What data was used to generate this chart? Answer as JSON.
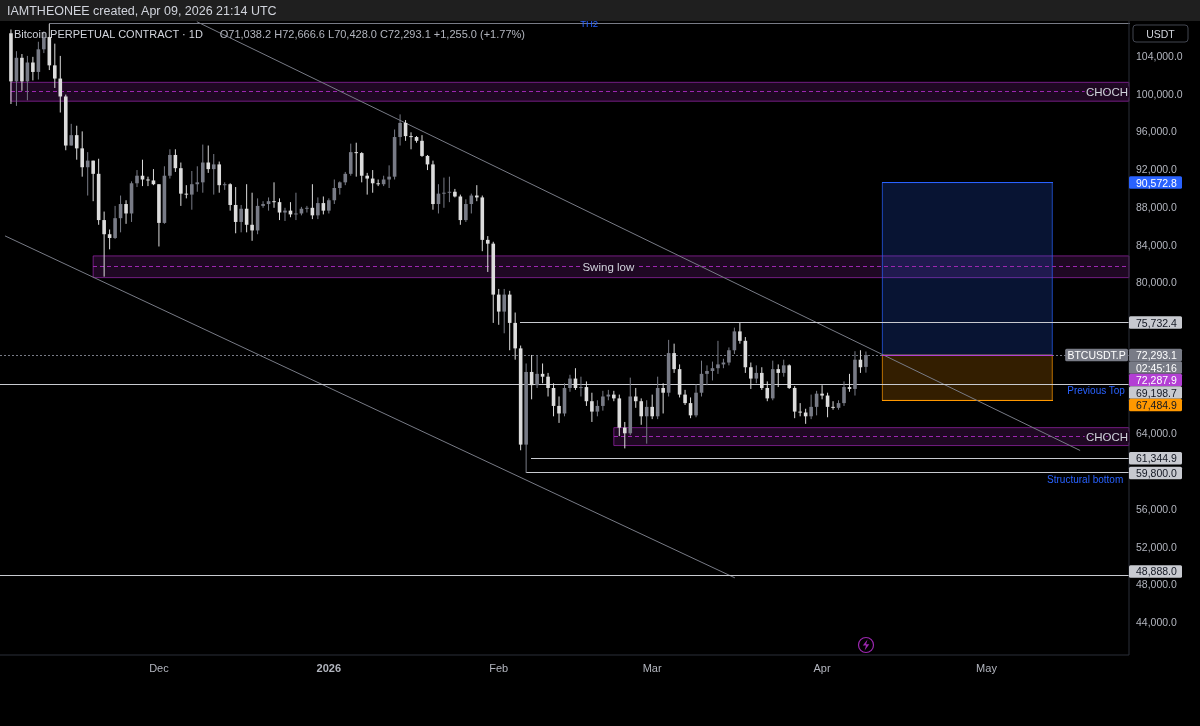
{
  "chart_data": {
    "type": "candlestick",
    "title": "Bitcoin PERPETUAL CONTRACT · 1D",
    "subtitle": "O71,038.2 H72,666.6 L70,428.0 C72,293.1 +1,255.0 (+1.77%)",
    "ylabel": "USDT",
    "annotations": [
      "IAMTHEONEE created, Apr 09, 2026 21:14 UTC",
      "02:45:16",
      "90,572.8",
      "72,287.9",
      "67,484.9",
      {
        "text": "CHOCH",
        "x": "2026-05-23",
        "y": 100200
      },
      {
        "text": "Swing low",
        "x": "2026-02-21",
        "y": 81650
      },
      {
        "text": "CHOCH",
        "x": "2026-05-23",
        "y": 63650
      },
      {
        "text": "Previous Top",
        "x": "2026-05-21",
        "y": 69198.7
      },
      {
        "text": "Structural bottom",
        "x": "2026-05-19",
        "y": 59800
      }
    ],
    "xlim": [
      "2025-11-02",
      "2026-05-27"
    ],
    "xticks": [
      {
        "value": "2025-12-01",
        "label": "Dec"
      },
      {
        "value": "2026-01-01",
        "label": "2026"
      },
      {
        "value": "2026-02-01",
        "label": "Feb"
      },
      {
        "value": "2026-03-01",
        "label": "Mar"
      },
      {
        "value": "2026-04-01",
        "label": "Apr"
      },
      {
        "value": "2026-05-01",
        "label": "May"
      }
    ],
    "ylim": [
      40500,
      107700
    ],
    "yticks": [
      {
        "value": 44000,
        "label": "44,000.0"
      },
      {
        "value": 48000,
        "label": "48,000.0"
      },
      {
        "value": 52000,
        "label": "52,000.0"
      },
      {
        "value": 56000,
        "label": "56,000.0"
      },
      {
        "value": 64000,
        "label": "64,000.0"
      },
      {
        "value": 80000,
        "label": "80,000.0"
      },
      {
        "value": 84000,
        "label": "84,000.0"
      },
      {
        "value": 88000,
        "label": "88,000.0"
      },
      {
        "value": 92000,
        "label": "92,000.0"
      },
      {
        "value": 96000,
        "label": "96,000.0"
      },
      {
        "value": 100000,
        "label": "100,000.0"
      },
      {
        "value": 104000,
        "label": "104,000.0"
      }
    ],
    "x": [
      "2025-11-04",
      "2025-11-05",
      "2025-11-06",
      "2025-11-07",
      "2025-11-08",
      "2025-11-09",
      "2025-11-10",
      "2025-11-11",
      "2025-11-12",
      "2025-11-13",
      "2025-11-14",
      "2025-11-15",
      "2025-11-16",
      "2025-11-17",
      "2025-11-18",
      "2025-11-19",
      "2025-11-20",
      "2025-11-21",
      "2025-11-22",
      "2025-11-23",
      "2025-11-24",
      "2025-11-25",
      "2025-11-26",
      "2025-11-27",
      "2025-11-28",
      "2025-11-29",
      "2025-11-30",
      "2025-12-01",
      "2025-12-02",
      "2025-12-03",
      "2025-12-04",
      "2025-12-05",
      "2025-12-06",
      "2025-12-07",
      "2025-12-08",
      "2025-12-09",
      "2025-12-10",
      "2025-12-11",
      "2025-12-12",
      "2025-12-13",
      "2025-12-14",
      "2025-12-15",
      "2025-12-16",
      "2025-12-17",
      "2025-12-18",
      "2025-12-19",
      "2025-12-20",
      "2025-12-21",
      "2025-12-22",
      "2025-12-23",
      "2025-12-24",
      "2025-12-25",
      "2025-12-26",
      "2025-12-27",
      "2025-12-28",
      "2025-12-29",
      "2025-12-30",
      "2025-12-31",
      "2026-01-01",
      "2026-01-02",
      "2026-01-03",
      "2026-01-04",
      "2026-01-05",
      "2026-01-06",
      "2026-01-07",
      "2026-01-08",
      "2026-01-09",
      "2026-01-10",
      "2026-01-11",
      "2026-01-12",
      "2026-01-13",
      "2026-01-14",
      "2026-01-15",
      "2026-01-16",
      "2026-01-17",
      "2026-01-18",
      "2026-01-19",
      "2026-01-20",
      "2026-01-21",
      "2026-01-22",
      "2026-01-23",
      "2026-01-24",
      "2026-01-25",
      "2026-01-26",
      "2026-01-27",
      "2026-01-28",
      "2026-01-29",
      "2026-01-30",
      "2026-01-31",
      "2026-02-01",
      "2026-02-02",
      "2026-02-03",
      "2026-02-04",
      "2026-02-05",
      "2026-02-06",
      "2026-02-07",
      "2026-02-08",
      "2026-02-09",
      "2026-02-10",
      "2026-02-11",
      "2026-02-12",
      "2026-02-13",
      "2026-02-14",
      "2026-02-15",
      "2026-02-16",
      "2026-02-17",
      "2026-02-18",
      "2026-02-19",
      "2026-02-20",
      "2026-02-21",
      "2026-02-22",
      "2026-02-23",
      "2026-02-24",
      "2026-02-25",
      "2026-02-26",
      "2026-02-27",
      "2026-02-28",
      "2026-03-01",
      "2026-03-02",
      "2026-03-03",
      "2026-03-04",
      "2026-03-05",
      "2026-03-06",
      "2026-03-07",
      "2026-03-08",
      "2026-03-09",
      "2026-03-10",
      "2026-03-11",
      "2026-03-12",
      "2026-03-13",
      "2026-03-14",
      "2026-03-15",
      "2026-03-16",
      "2026-03-17",
      "2026-03-18",
      "2026-03-19",
      "2026-03-20",
      "2026-03-21",
      "2026-03-22",
      "2026-03-23",
      "2026-03-24",
      "2026-03-25",
      "2026-03-26",
      "2026-03-27",
      "2026-03-28",
      "2026-03-29",
      "2026-03-30",
      "2026-03-31",
      "2026-04-01",
      "2026-04-02",
      "2026-04-03",
      "2026-04-04",
      "2026-04-05",
      "2026-04-06",
      "2026-04-07",
      "2026-04-08",
      "2026-04-09"
    ],
    "ohlc": [
      [
        106400,
        106800,
        98900,
        101300
      ],
      [
        101300,
        104500,
        98700,
        103800
      ],
      [
        103800,
        104200,
        100300,
        101300
      ],
      [
        101300,
        104000,
        99300,
        103300
      ],
      [
        103300,
        103900,
        101400,
        102300
      ],
      [
        102300,
        105500,
        101500,
        104700
      ],
      [
        104700,
        106600,
        104300,
        106000
      ],
      [
        106000,
        107400,
        102500,
        103000
      ],
      [
        103000,
        105300,
        100600,
        101600
      ],
      [
        101600,
        104000,
        98000,
        99700
      ],
      [
        99700,
        99900,
        94000,
        94500
      ],
      [
        94500,
        96800,
        94500,
        95600
      ],
      [
        95600,
        96600,
        93000,
        94200
      ],
      [
        94200,
        96000,
        91200,
        92200
      ],
      [
        92200,
        93800,
        89200,
        92900
      ],
      [
        92900,
        92900,
        88600,
        91500
      ],
      [
        91500,
        93100,
        86100,
        86600
      ],
      [
        86600,
        87500,
        80600,
        85100
      ],
      [
        85100,
        85600,
        83500,
        84700
      ],
      [
        84700,
        88100,
        84600,
        86800
      ],
      [
        86800,
        89200,
        85300,
        88300
      ],
      [
        88300,
        88700,
        86200,
        87300
      ],
      [
        87300,
        90700,
        86400,
        90500
      ],
      [
        90500,
        91900,
        90100,
        91300
      ],
      [
        91300,
        93000,
        90200,
        90900
      ],
      [
        90900,
        91200,
        90200,
        90800
      ],
      [
        90800,
        92000,
        90300,
        90400
      ],
      [
        90400,
        90400,
        83800,
        86300
      ],
      [
        86300,
        92300,
        86200,
        91300
      ],
      [
        91300,
        94100,
        91000,
        93500
      ],
      [
        93500,
        94100,
        91700,
        92100
      ],
      [
        92100,
        92700,
        88100,
        89400
      ],
      [
        89400,
        90300,
        88900,
        89300
      ],
      [
        89300,
        91800,
        87700,
        90400
      ],
      [
        90400,
        92300,
        89600,
        90600
      ],
      [
        90600,
        94600,
        89500,
        92700
      ],
      [
        92700,
        94500,
        91600,
        92000
      ],
      [
        92000,
        93600,
        89300,
        92500
      ],
      [
        92500,
        92800,
        89500,
        90300
      ],
      [
        90300,
        90600,
        89800,
        90400
      ],
      [
        90400,
        90500,
        87600,
        88200
      ],
      [
        88200,
        90100,
        85200,
        86400
      ],
      [
        86400,
        88200,
        85300,
        87800
      ],
      [
        87800,
        90400,
        85300,
        86100
      ],
      [
        86100,
        89500,
        84400,
        85500
      ],
      [
        85500,
        88900,
        85100,
        88100
      ],
      [
        88100,
        88600,
        87900,
        88300
      ],
      [
        88300,
        89000,
        87600,
        88600
      ],
      [
        88600,
        90600,
        87900,
        88500
      ],
      [
        88500,
        88900,
        86600,
        87400
      ],
      [
        87400,
        87900,
        86500,
        87600
      ],
      [
        87600,
        88500,
        86900,
        87200
      ],
      [
        87200,
        89500,
        86600,
        87300
      ],
      [
        87300,
        88000,
        87100,
        87800
      ],
      [
        87800,
        88100,
        87400,
        87900
      ],
      [
        87900,
        90400,
        86700,
        87100
      ],
      [
        87100,
        89000,
        86700,
        88400
      ],
      [
        88400,
        89100,
        87200,
        87600
      ],
      [
        87600,
        88900,
        87300,
        88700
      ],
      [
        88700,
        90900,
        88300,
        90000
      ],
      [
        90000,
        90700,
        89300,
        90600
      ],
      [
        90600,
        91700,
        90300,
        91500
      ],
      [
        91500,
        94700,
        91300,
        93800
      ],
      [
        93800,
        94800,
        91200,
        93700
      ],
      [
        93700,
        93800,
        90600,
        91300
      ],
      [
        91300,
        91600,
        89300,
        91000
      ],
      [
        91000,
        91900,
        89500,
        90500
      ],
      [
        90500,
        90900,
        90200,
        90400
      ],
      [
        90400,
        91300,
        90200,
        90900
      ],
      [
        90900,
        92400,
        90000,
        91200
      ],
      [
        91200,
        96200,
        90900,
        95400
      ],
      [
        95400,
        97800,
        94500,
        96900
      ],
      [
        96900,
        97200,
        95000,
        95500
      ],
      [
        95500,
        95900,
        94100,
        95400
      ],
      [
        95400,
        95500,
        94800,
        95000
      ],
      [
        95000,
        95600,
        93300,
        93400
      ],
      [
        93400,
        93500,
        91900,
        92500
      ],
      [
        92500,
        92900,
        87700,
        88300
      ],
      [
        88300,
        90400,
        87300,
        89400
      ],
      [
        89400,
        91100,
        87900,
        89500
      ],
      [
        89500,
        91200,
        88500,
        89600
      ],
      [
        89600,
        89900,
        89000,
        89100
      ],
      [
        89100,
        89300,
        86100,
        86600
      ],
      [
        86600,
        88800,
        86400,
        88300
      ],
      [
        88300,
        89400,
        87300,
        89200
      ],
      [
        89200,
        90300,
        88600,
        89000
      ],
      [
        89000,
        89200,
        83300,
        84500
      ],
      [
        84500,
        84900,
        81100,
        84100
      ],
      [
        84100,
        84300,
        75700,
        78700
      ],
      [
        78700,
        79300,
        75500,
        76900
      ],
      [
        76900,
        79300,
        74600,
        78700
      ],
      [
        78700,
        79100,
        72800,
        75700
      ],
      [
        75700,
        76800,
        71800,
        73000
      ],
      [
        73000,
        73300,
        62200,
        62800
      ],
      [
        62800,
        71400,
        59800,
        70500
      ],
      [
        70500,
        72300,
        67600,
        69100
      ],
      [
        69100,
        72200,
        68800,
        70300
      ],
      [
        70300,
        71400,
        69300,
        70000
      ],
      [
        70000,
        70400,
        67900,
        68800
      ],
      [
        68800,
        69300,
        65800,
        66900
      ],
      [
        66900,
        67900,
        65100,
        66100
      ],
      [
        66100,
        69300,
        65800,
        68800
      ],
      [
        68800,
        70200,
        68400,
        69800
      ],
      [
        69800,
        70900,
        68600,
        68800
      ],
      [
        68800,
        70000,
        67900,
        68900
      ],
      [
        68900,
        69500,
        66900,
        67400
      ],
      [
        67400,
        68300,
        65200,
        66300
      ],
      [
        66300,
        67500,
        65800,
        66900
      ],
      [
        66900,
        68500,
        66400,
        67900
      ],
      [
        67900,
        68600,
        67500,
        68100
      ],
      [
        68100,
        68500,
        67400,
        67700
      ],
      [
        67700,
        68100,
        63700,
        64600
      ],
      [
        64600,
        65200,
        62400,
        64000
      ],
      [
        64000,
        69900,
        63800,
        67900
      ],
      [
        67900,
        68800,
        66700,
        67400
      ],
      [
        67400,
        67700,
        64900,
        65800
      ],
      [
        65800,
        67500,
        62900,
        66800
      ],
      [
        66800,
        68100,
        65500,
        65800
      ],
      [
        65800,
        70000,
        65500,
        68800
      ],
      [
        68800,
        69300,
        66100,
        68300
      ],
      [
        68300,
        73900,
        67900,
        72500
      ],
      [
        72500,
        73500,
        70400,
        70800
      ],
      [
        70800,
        71300,
        67800,
        68100
      ],
      [
        68100,
        68600,
        67000,
        67200
      ],
      [
        67200,
        67800,
        65600,
        65900
      ],
      [
        65900,
        69200,
        65700,
        68300
      ],
      [
        68300,
        71700,
        67900,
        70300
      ],
      [
        70300,
        71200,
        69100,
        70600
      ],
      [
        70600,
        71600,
        69600,
        70900
      ],
      [
        70900,
        73800,
        70300,
        71300
      ],
      [
        71300,
        71900,
        70900,
        71500
      ],
      [
        71500,
        73100,
        71200,
        72800
      ],
      [
        72800,
        75200,
        72400,
        74800
      ],
      [
        74800,
        75700,
        73500,
        73800
      ],
      [
        73800,
        74200,
        70400,
        71000
      ],
      [
        71000,
        71500,
        68700,
        69800
      ],
      [
        69800,
        71200,
        69300,
        70400
      ],
      [
        70400,
        71000,
        68600,
        68800
      ],
      [
        68800,
        69500,
        67400,
        67700
      ],
      [
        67700,
        71700,
        67500,
        70800
      ],
      [
        70800,
        71300,
        68900,
        70400
      ],
      [
        70400,
        71800,
        70000,
        71200
      ],
      [
        71200,
        71300,
        68700,
        68800
      ],
      [
        68800,
        69000,
        65600,
        66300
      ],
      [
        66300,
        67200,
        65800,
        66200
      ],
      [
        66200,
        66600,
        65000,
        65800
      ],
      [
        65800,
        68100,
        65500,
        66800
      ],
      [
        66800,
        68500,
        65900,
        68200
      ],
      [
        68200,
        69100,
        67600,
        68000
      ],
      [
        68000,
        68300,
        65700,
        66800
      ],
      [
        66800,
        67400,
        66500,
        66700
      ],
      [
        66700,
        67500,
        66500,
        67200
      ],
      [
        67200,
        69500,
        66900,
        68900
      ],
      [
        68900,
        70300,
        68400,
        68700
      ],
      [
        68700,
        72700,
        68000,
        71800
      ],
      [
        71800,
        72800,
        70400,
        71000
      ],
      [
        71038.2,
        72666.6,
        70428.0,
        72293.1
      ]
    ],
    "colors": [
      "#dcdcdc",
      "#787b86",
      "#dcdcdc",
      "#787b86",
      "#dcdcdc",
      "#787b86",
      "#787b86",
      "#dcdcdc",
      "#dcdcdc",
      "#dcdcdc",
      "#dcdcdc",
      "#787b86",
      "#dcdcdc",
      "#dcdcdc",
      "#787b86",
      "#dcdcdc",
      "#dcdcdc",
      "#dcdcdc",
      "#dcdcdc",
      "#787b86",
      "#787b86",
      "#dcdcdc",
      "#787b86",
      "#787b86",
      "#dcdcdc",
      "#dcdcdc",
      "#dcdcdc",
      "#dcdcdc",
      "#787b86",
      "#787b86",
      "#dcdcdc",
      "#dcdcdc",
      "#dcdcdc",
      "#787b86",
      "#787b86",
      "#787b86",
      "#dcdcdc",
      "#787b86",
      "#dcdcdc",
      "#787b86",
      "#dcdcdc",
      "#dcdcdc",
      "#787b86",
      "#dcdcdc",
      "#dcdcdc",
      "#787b86",
      "#787b86",
      "#787b86",
      "#dcdcdc",
      "#dcdcdc",
      "#787b86",
      "#dcdcdc",
      "#787b86",
      "#787b86",
      "#787b86",
      "#dcdcdc",
      "#787b86",
      "#dcdcdc",
      "#787b86",
      "#787b86",
      "#787b86",
      "#787b86",
      "#787b86",
      "#dcdcdc",
      "#dcdcdc",
      "#dcdcdc",
      "#dcdcdc",
      "#dcdcdc",
      "#787b86",
      "#787b86",
      "#787b86",
      "#787b86",
      "#dcdcdc",
      "#dcdcdc",
      "#dcdcdc",
      "#dcdcdc",
      "#dcdcdc",
      "#dcdcdc",
      "#787b86",
      "#787b86",
      "#787b86",
      "#dcdcdc",
      "#dcdcdc",
      "#787b86",
      "#787b86",
      "#dcdcdc",
      "#dcdcdc",
      "#dcdcdc",
      "#dcdcdc",
      "#dcdcdc",
      "#787b86",
      "#dcdcdc",
      "#dcdcdc",
      "#dcdcdc",
      "#787b86",
      "#dcdcdc",
      "#787b86",
      "#dcdcdc",
      "#dcdcdc",
      "#dcdcdc",
      "#dcdcdc",
      "#787b86",
      "#787b86",
      "#dcdcdc",
      "#787b86",
      "#dcdcdc",
      "#dcdcdc",
      "#787b86",
      "#787b86",
      "#787b86",
      "#dcdcdc",
      "#dcdcdc",
      "#dcdcdc",
      "#787b86",
      "#dcdcdc",
      "#dcdcdc",
      "#787b86",
      "#dcdcdc",
      "#787b86",
      "#dcdcdc",
      "#787b86",
      "#dcdcdc",
      "#dcdcdc",
      "#dcdcdc",
      "#dcdcdc",
      "#787b86",
      "#787b86",
      "#787b86",
      "#787b86",
      "#787b86",
      "#787b86",
      "#787b86",
      "#787b86",
      "#dcdcdc",
      "#dcdcdc",
      "#dcdcdc",
      "#787b86",
      "#dcdcdc",
      "#dcdcdc",
      "#787b86",
      "#dcdcdc",
      "#787b86",
      "#dcdcdc",
      "#dcdcdc",
      "#dcdcdc",
      "#dcdcdc",
      "#787b86",
      "#787b86",
      "#dcdcdc",
      "#dcdcdc",
      "#dcdcdc",
      "#787b86",
      "#787b86",
      "#dcdcdc",
      "#787b86",
      "#dcdcdc",
      "#787b86"
    ],
    "series": [
      {
        "type": "line",
        "x": [
          "2025-11-04",
          "2026-05-27"
        ],
        "values": [
          100200,
          100200
        ],
        "lower": [
          99200,
          99200
        ],
        "upper": [
          101200,
          101200
        ],
        "color": "#9c27b0",
        "line_style": "dashed"
      },
      {
        "type": "line",
        "x": [
          "2025-11-19",
          "2026-05-27"
        ],
        "values": [
          81650,
          81650
        ],
        "lower": [
          80500,
          80500
        ],
        "upper": [
          82800,
          82800
        ],
        "color": "#9c27b0",
        "line_style": "dashed"
      },
      {
        "type": "line",
        "x": [
          "2026-02-22",
          "2026-05-27"
        ],
        "values": [
          63650,
          63650
        ],
        "lower": [
          62700,
          62700
        ],
        "upper": [
          64600,
          64600
        ],
        "color": "#9c27b0",
        "line_style": "dashed"
      },
      {
        "type": "line",
        "x": [
          "2026-04-12",
          "2026-05-13"
        ],
        "values": [
          90572.8,
          90572.8
        ],
        "lower": [
          72287.9,
          72287.9
        ],
        "upper": [
          90572.8,
          90572.8
        ],
        "color": "#2962ff"
      },
      {
        "type": "line",
        "x": [
          "2026-04-12",
          "2026-05-13"
        ],
        "values": [
          67484.9,
          67484.9
        ],
        "lower": [
          67484.9,
          67484.9
        ],
        "upper": [
          72287.9,
          72287.9
        ],
        "color": "#ff9800"
      },
      {
        "type": "line",
        "name": "TH2",
        "x": [
          "2025-11-11",
          "2026-05-27"
        ],
        "values": [
          107400,
          107400
        ],
        "color": "#787b86"
      },
      {
        "type": "line",
        "x": [
          "2025-12-08",
          "2026-05-18"
        ],
        "values": [
          107600,
          62200
        ],
        "color": "#787b86"
      },
      {
        "type": "line",
        "x": [
          "2025-11-03",
          "2026-03-16"
        ],
        "values": [
          84900,
          48700
        ],
        "color": "#787b86"
      },
      {
        "type": "line",
        "name": "BTCUSDT.P",
        "x": [
          "2025-11-02",
          "2026-05-27"
        ],
        "values": [
          72293.1,
          72293.1
        ],
        "color": "#787b86",
        "line_style": "dotted",
        "value_labels": [
          null,
          "72,293.1"
        ]
      },
      {
        "type": "line",
        "x": [
          "2026-04-12",
          "2026-05-13"
        ],
        "values": [
          72287.9,
          72287.9
        ],
        "color": "#b33fd4"
      },
      {
        "type": "line",
        "x": [
          "2026-02-05",
          "2026-05-27"
        ],
        "values": [
          75732.4,
          75732.4
        ],
        "color": "#c8cad0",
        "value_labels": [
          null,
          "75,732.4"
        ]
      },
      {
        "type": "line",
        "x": [
          "2025-11-02",
          "2026-05-27"
        ],
        "values": [
          69198.7,
          69198.7
        ],
        "color": "#c8cad0",
        "value_labels": [
          null,
          "69,198.7"
        ]
      },
      {
        "type": "line",
        "x": [
          "2026-02-07",
          "2026-05-27"
        ],
        "values": [
          61344.9,
          61344.9
        ],
        "color": "#c8cad0",
        "value_labels": [
          null,
          "61,344.9"
        ]
      },
      {
        "type": "line",
        "x": [
          "2026-02-06",
          "2026-05-27"
        ],
        "values": [
          59800,
          59800
        ],
        "color": "#c8cad0",
        "value_labels": [
          null,
          "59,800.0"
        ]
      },
      {
        "type": "line",
        "x": [
          "2025-11-02",
          "2026-05-27"
        ],
        "values": [
          48888,
          48888
        ],
        "color": "#c8cad0",
        "value_labels": [
          null,
          "48,888.0"
        ]
      }
    ]
  }
}
